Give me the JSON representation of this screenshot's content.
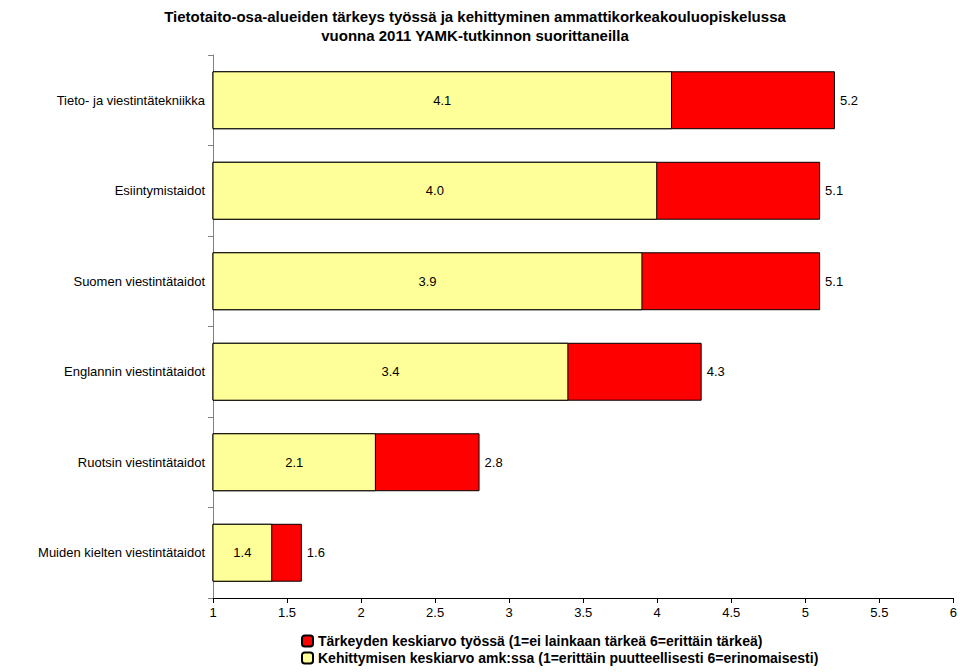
{
  "chart_data": {
    "type": "bar",
    "orientation": "horizontal",
    "title": "Tietotaito-osa-alueiden tärkeys työssä ja kehittyminen ammattikorkeakouluopiskelussa\nvuonna 2011 YAMK-tutkinnon suorittaneilla",
    "categories": [
      "Tieto- ja viestintätekniikka",
      "Esiintymistaidot",
      "Suomen viestintätaidot",
      "Englannin viestintätaidot",
      "Ruotsin viestintätaidot",
      "Muiden kielten viestintätaidot"
    ],
    "series": [
      {
        "name": "Tärkeyden keskiarvo työssä (1=ei lainkaan tärkeä 6=erittäin tärkeä)",
        "color": "#ff0000",
        "values": [
          5.2,
          5.1,
          5.1,
          4.3,
          2.8,
          1.6
        ],
        "value_labels": [
          "5.2",
          "5.1",
          "5.1",
          "4.3",
          "2.8",
          "1.6"
        ]
      },
      {
        "name": "Kehittymisen keskiarvo amk:ssa (1=erittäin puutteellisesti 6=erinomaisesti)",
        "color": "#ffff99",
        "values": [
          4.1,
          4.0,
          3.9,
          3.4,
          2.1,
          1.4
        ],
        "value_labels": [
          "4.1",
          "4.0",
          "3.9",
          "3.4",
          "2.1",
          "1.4"
        ]
      }
    ],
    "xlim": [
      1,
      6
    ],
    "xticks": [
      1,
      1.5,
      2,
      2.5,
      3,
      3.5,
      4,
      4.5,
      5,
      5.5,
      6
    ],
    "stacked": false,
    "data_labels": true,
    "grid": false,
    "legend": "bottom"
  }
}
